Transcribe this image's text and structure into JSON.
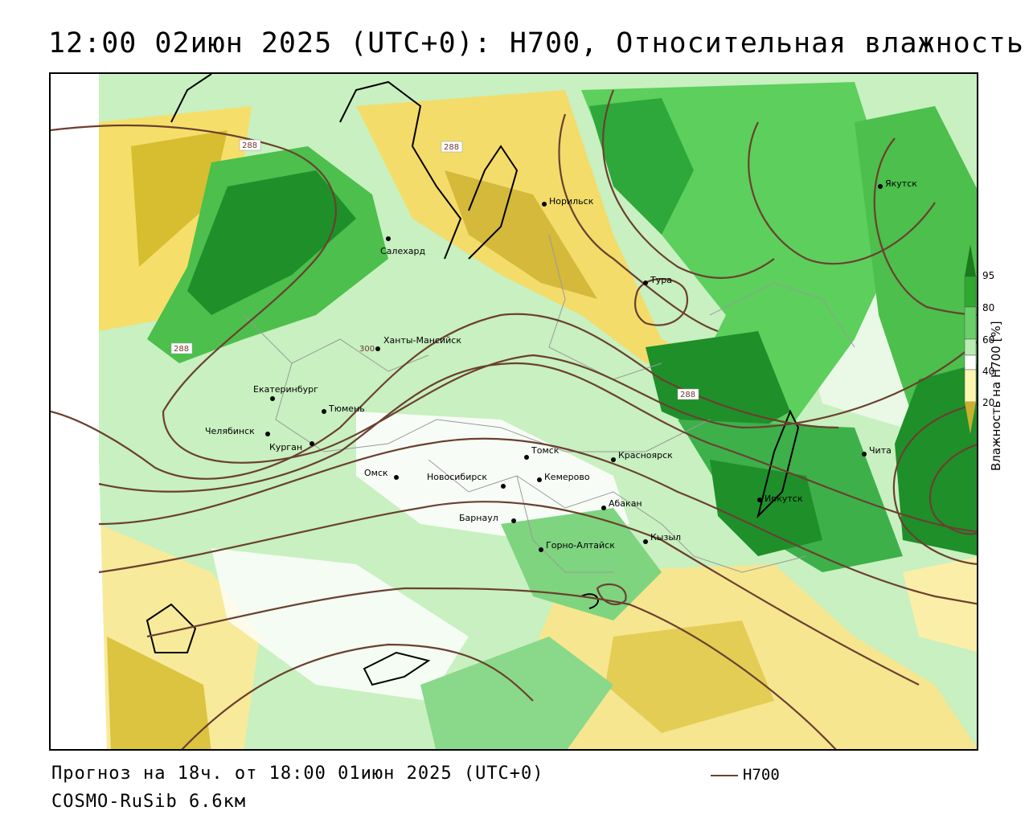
{
  "title": "12:00 02июн 2025 (UTC+0): H700, Относительная влажность",
  "forecast_text": "Прогноз на 18ч. от 18:00 01июн 2025 (UTC+0)",
  "model_text": "COSMO-RuSib 6.6км",
  "legend": {
    "line_label": "H700",
    "line_color": "#6b4030"
  },
  "colorbar": {
    "title": "Влажность на H700 [%]",
    "ticks": [
      "95",
      "80",
      "60",
      "40",
      "20"
    ],
    "colors": [
      "#1a7a1a",
      "#2ea82e",
      "#69cf69",
      "#b8ecb0",
      "#ffffff",
      "#fff6b0",
      "#e8d870",
      "#c9b030"
    ]
  },
  "isoline_labels": [
    "288",
    "288",
    "288",
    "288",
    "300"
  ],
  "cities": [
    {
      "name": "Норильск"
    },
    {
      "name": "Якутск"
    },
    {
      "name": "Салехард"
    },
    {
      "name": "Тура"
    },
    {
      "name": "Ханты-Мансийск"
    },
    {
      "name": "Екатеринбург"
    },
    {
      "name": "Тюмень"
    },
    {
      "name": "Челябинск"
    },
    {
      "name": "Курган"
    },
    {
      "name": "Омск"
    },
    {
      "name": "Новосибирск"
    },
    {
      "name": "Томск"
    },
    {
      "name": "Кемерово"
    },
    {
      "name": "Красноярск"
    },
    {
      "name": "Барнаул"
    },
    {
      "name": "Абакан"
    },
    {
      "name": "Горно-Алтайск"
    },
    {
      "name": "Кызыл"
    },
    {
      "name": "Иркутск"
    },
    {
      "name": "Чита"
    }
  ]
}
